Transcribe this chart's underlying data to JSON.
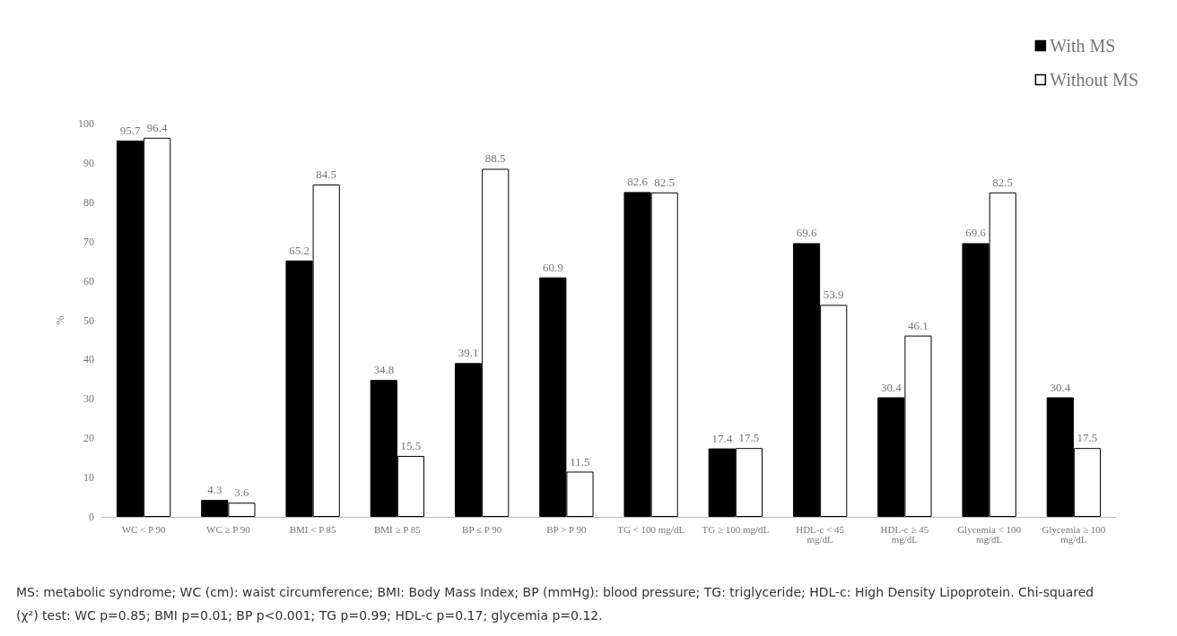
{
  "chart_data": {
    "type": "bar",
    "categories": [
      "WC < P 90",
      "WC ≥ P 90",
      "BMI < P 85",
      "BMI ≥ P 85",
      "BP ≤ P 90",
      "BP > P 90",
      "TG < 100 mg/dL",
      "TG ≥ 100 mg/dL",
      "HDL-c < 45\nmg/dL",
      "HDL-c ≥ 45\nmg/dL",
      "Glycemia < 100\nmg/dL",
      "Glycemia ≥ 100\nmg/dL"
    ],
    "series": [
      {
        "name": "With MS",
        "color": "#000000",
        "values": [
          95.7,
          4.3,
          65.2,
          34.8,
          39.1,
          60.9,
          82.6,
          17.4,
          69.6,
          30.4,
          69.6,
          30.4
        ]
      },
      {
        "name": "Without MS",
        "color": "#ffffff",
        "values": [
          96.4,
          3.6,
          84.5,
          15.5,
          88.5,
          11.5,
          82.5,
          17.5,
          53.9,
          46.1,
          82.5,
          17.5
        ]
      }
    ],
    "ylabel": "%",
    "ylim": [
      0,
      100
    ],
    "yticks": [
      0,
      10,
      20,
      30,
      40,
      50,
      60,
      70,
      80,
      90,
      100
    ],
    "data_labels": true,
    "grid": false,
    "legend": "top right",
    "annotations": [
      "MS: metabolic syndrome; WC (cm): waist circumference; BMI: Body Mass Index; BP (mmHg): blood pressure; TG: triglyceride; HDL-c: High Density Lipoprotein. Chi-squared (χ²) test: WC p=0.85; BMI p=0.01; BP p<0.001; TG p=0.99; HDL-c p=0.17; glycemia p=0.12."
    ]
  }
}
